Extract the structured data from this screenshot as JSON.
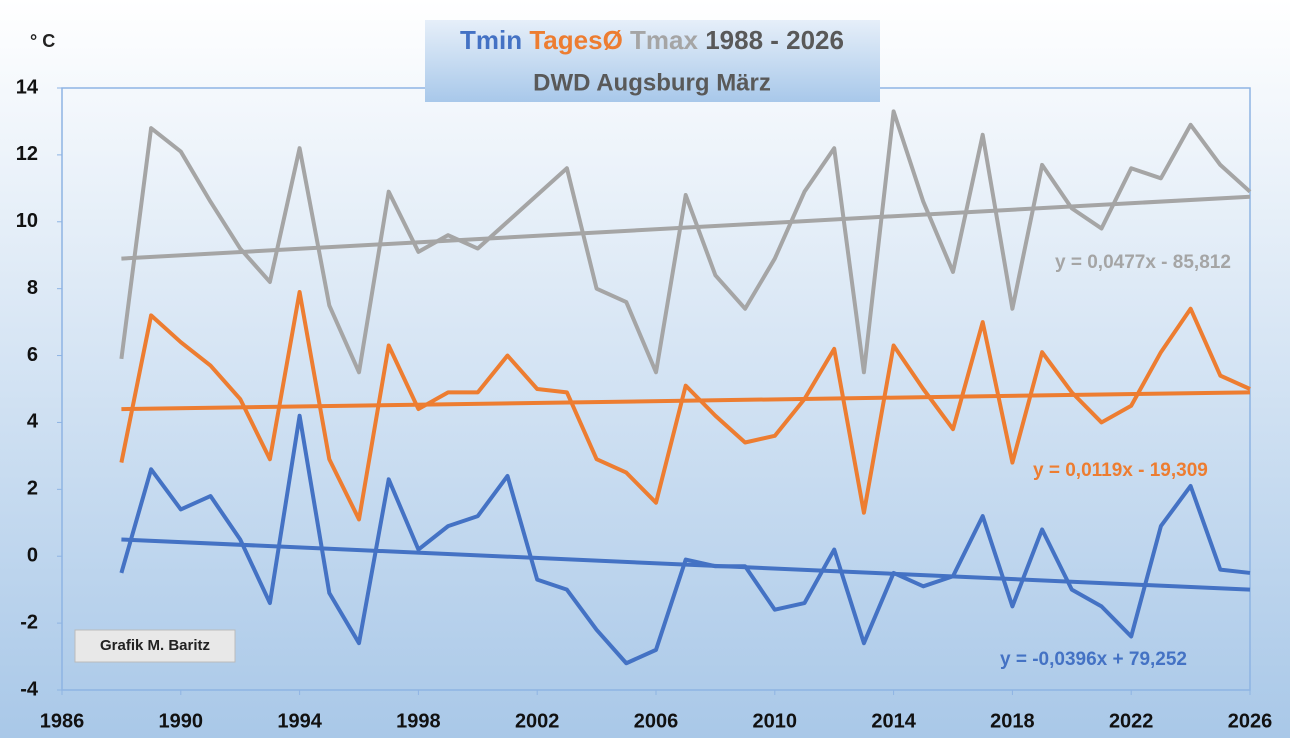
{
  "chart_data": {
    "type": "line",
    "title": "1988 - 2026",
    "subtitle": "DWD Augsburg März",
    "ylabel": "° C",
    "annotation": "Grafik M. Baritz",
    "x": [
      1988,
      1989,
      1990,
      1991,
      1992,
      1993,
      1994,
      1995,
      1996,
      1997,
      1998,
      1999,
      2000,
      2001,
      2002,
      2003,
      2004,
      2005,
      2006,
      2007,
      2008,
      2009,
      2010,
      2011,
      2012,
      2013,
      2014,
      2015,
      2016,
      2017,
      2018,
      2019,
      2020,
      2021,
      2022,
      2023,
      2024,
      2025,
      2026
    ],
    "series": [
      {
        "name": "Tmin",
        "color": "#4472c4",
        "values": [
          -0.5,
          2.6,
          1.4,
          1.8,
          0.5,
          -1.4,
          4.2,
          -1.1,
          -2.6,
          2.3,
          0.2,
          0.9,
          1.2,
          2.4,
          -0.7,
          -1.0,
          -2.2,
          -3.2,
          -2.8,
          -0.1,
          -0.3,
          -0.3,
          -1.6,
          -1.4,
          0.2,
          -2.6,
          -0.5,
          -0.9,
          -0.6,
          1.2,
          -1.5,
          0.8,
          -1.0,
          -1.5,
          -2.4,
          0.9,
          2.1,
          -0.4,
          -0.5
        ]
      },
      {
        "name": "TagesØ",
        "color": "#ed7d31",
        "values": [
          2.8,
          7.2,
          6.4,
          5.7,
          4.7,
          2.9,
          7.9,
          2.9,
          1.1,
          6.3,
          4.4,
          4.9,
          4.9,
          6.0,
          5.0,
          4.9,
          2.9,
          2.5,
          1.6,
          5.1,
          4.2,
          3.4,
          3.6,
          4.7,
          6.2,
          1.3,
          6.3,
          5.0,
          3.8,
          7.0,
          2.8,
          6.1,
          4.9,
          4.0,
          4.5,
          6.1,
          7.4,
          5.4,
          5.0
        ]
      },
      {
        "name": "Tmax",
        "color": "#a5a5a5",
        "values": [
          5.9,
          12.8,
          12.1,
          10.6,
          9.2,
          8.2,
          12.2,
          7.5,
          5.5,
          10.9,
          9.1,
          9.6,
          9.2,
          10.0,
          10.8,
          11.6,
          8.0,
          7.6,
          5.5,
          10.8,
          8.4,
          7.4,
          8.9,
          10.9,
          12.2,
          5.5,
          13.3,
          10.6,
          8.5,
          12.6,
          7.4,
          11.7,
          10.4,
          9.8,
          11.6,
          11.3,
          12.9,
          11.7,
          10.9
        ]
      }
    ],
    "trendlines": [
      {
        "color": "#4472c4",
        "label": "y = -0,0396x + 79,252",
        "x": [
          1988,
          2026
        ],
        "values": [
          0.5,
          -1.0
        ]
      },
      {
        "color": "#ed7d31",
        "label": "y = 0,0119x - 19,309",
        "x": [
          1988,
          2026
        ],
        "values": [
          4.4,
          4.9
        ]
      },
      {
        "color": "#a5a5a5",
        "label": "y = 0,0477x - 85,812",
        "x": [
          1988,
          2026
        ],
        "values": [
          8.9,
          10.75
        ]
      }
    ],
    "xlim": [
      1986,
      2026
    ],
    "xticks": [
      1986,
      1990,
      1994,
      1998,
      2002,
      2006,
      2010,
      2014,
      2018,
      2022,
      2026
    ],
    "ylim": [
      -4,
      14
    ],
    "yticks": [
      -4,
      -2,
      0,
      2,
      4,
      6,
      8,
      10,
      12,
      14
    ],
    "grid": false
  }
}
